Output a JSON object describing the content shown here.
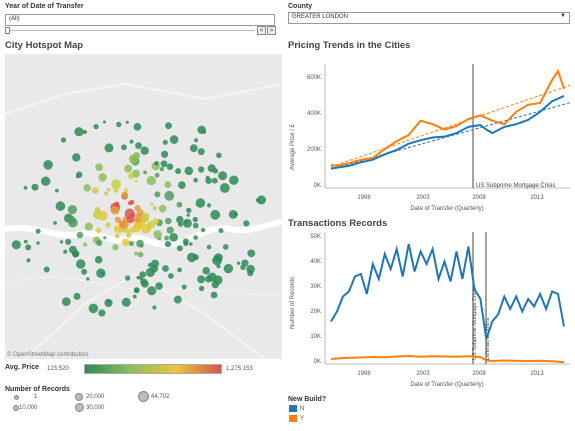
{
  "filters": {
    "year_label": "Year of Date of Transfer",
    "year_value": "(All)",
    "county_label": "County",
    "county_value": "GREATER LONDON"
  },
  "map": {
    "title": "City Hotspot Map",
    "attribution": "© OpenStreetMap contributors"
  },
  "legend_price": {
    "title": "Avg. Price",
    "min": "123,520",
    "max": "1,275,153",
    "colors": [
      "#2e8b57",
      "#8dbd5a",
      "#e8c83a",
      "#d9534f"
    ]
  },
  "legend_records": {
    "title": "Number of Records",
    "items": [
      "1",
      "10,000",
      "20,000",
      "30,000",
      "44,702"
    ]
  },
  "legend_newbuild": {
    "title": "New Build?",
    "items": [
      {
        "label": "N",
        "color": "#1f77b4"
      },
      {
        "label": "Y",
        "color": "#ff7f0e"
      }
    ]
  },
  "pricing": {
    "title": "Pricing Trends in the Cities",
    "ylabel": "Average Price / £",
    "xlabel": "Date of Transfer (Quarterly)",
    "yticks": [
      "600K",
      "400K",
      "200K",
      "0K"
    ],
    "xticks": [
      "1998",
      "2003",
      "2008",
      "2013"
    ],
    "annotation": "US Subprime Mortgage Crisis"
  },
  "transactions": {
    "title": "Transactions Records",
    "ylabel": "Number of Records",
    "xlabel": "Date of Transfer (Quarterly)",
    "yticks": [
      "50K",
      "40K",
      "30K",
      "20K",
      "10K",
      "0K"
    ],
    "xticks": [
      "1998",
      "2003",
      "2008",
      "2013"
    ],
    "annotation1": "US Subprime Mortgage Crisis",
    "annotation2": "Lehman Brothers"
  },
  "chart_data": [
    {
      "type": "line",
      "title": "Pricing Trends in the Cities",
      "xlabel": "Date of Transfer (Quarterly)",
      "ylabel": "Average Price / £",
      "ylim": [
        0,
        700000
      ],
      "xlim": [
        1995,
        2015.5
      ],
      "series": [
        {
          "name": "N",
          "color": "#1f77b4",
          "x": [
            1995.5,
            1996,
            1997,
            1998,
            1999,
            2000,
            2001,
            2002,
            2003,
            2004,
            2005,
            2006,
            2007,
            2008,
            2008.5,
            2009,
            2010,
            2011,
            2012,
            2013,
            2014,
            2015
          ],
          "values": [
            110000,
            115000,
            125000,
            145000,
            160000,
            190000,
            215000,
            250000,
            270000,
            285000,
            290000,
            310000,
            345000,
            355000,
            330000,
            310000,
            345000,
            360000,
            385000,
            430000,
            490000,
            520000
          ]
        },
        {
          "name": "Y",
          "color": "#ff7f0e",
          "x": [
            1995.5,
            1996,
            1997,
            1998,
            1999,
            2000,
            2001,
            2002,
            2003,
            2004,
            2005,
            2006,
            2007,
            2008,
            2009,
            2010,
            2011,
            2012,
            2013,
            2014,
            2014.5,
            2015
          ],
          "values": [
            130000,
            125000,
            140000,
            160000,
            170000,
            220000,
            265000,
            300000,
            380000,
            360000,
            330000,
            350000,
            390000,
            410000,
            380000,
            360000,
            430000,
            470000,
            480000,
            610000,
            660000,
            560000
          ]
        }
      ]
    },
    {
      "type": "line",
      "title": "Transactions Records",
      "xlabel": "Date of Transfer (Quarterly)",
      "ylabel": "Number of Records",
      "ylim": [
        0,
        50000
      ],
      "xlim": [
        1995,
        2015.5
      ],
      "series": [
        {
          "name": "N",
          "color": "#1f77b4",
          "x": [
            1995.5,
            1996,
            1996.5,
            1997,
            1997.5,
            1998,
            1998.5,
            1999,
            1999.5,
            2000,
            2000.5,
            2001,
            2001.5,
            2002,
            2002.5,
            2003,
            2003.5,
            2004,
            2004.5,
            2005,
            2005.5,
            2006,
            2006.5,
            2007,
            2007.5,
            2008,
            2008.5,
            2009,
            2009.5,
            2010,
            2010.5,
            2011,
            2011.5,
            2012,
            2012.5,
            2013,
            2013.5,
            2014,
            2014.5,
            2015
          ],
          "values": [
            17000,
            21000,
            27000,
            29000,
            35000,
            36000,
            28000,
            40000,
            34000,
            44000,
            38000,
            46000,
            35000,
            48000,
            37000,
            45000,
            40000,
            46000,
            34000,
            41000,
            33000,
            45000,
            34000,
            47000,
            30000,
            26000,
            10000,
            17000,
            20000,
            27000,
            22000,
            27000,
            21000,
            26000,
            23000,
            28000,
            22000,
            29000,
            28000,
            15000
          ]
        },
        {
          "name": "Y",
          "color": "#ff7f0e",
          "x": [
            1995.5,
            1996,
            1997,
            1998,
            1999,
            2000,
            2001,
            2002,
            2003,
            2004,
            2005,
            2006,
            2007,
            2008,
            2008.5,
            2009,
            2010,
            2011,
            2012,
            2013,
            2014,
            2015
          ],
          "values": [
            2000,
            2200,
            2500,
            2600,
            2800,
            2700,
            3000,
            3200,
            2900,
            3100,
            3000,
            2900,
            3100,
            2800,
            1500,
            1200,
            1400,
            1300,
            1200,
            1300,
            1100,
            700
          ]
        }
      ]
    }
  ]
}
